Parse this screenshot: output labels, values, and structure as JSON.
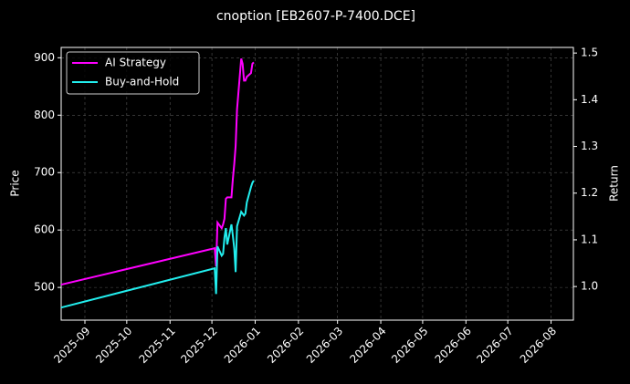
{
  "chart_data": {
    "type": "line",
    "title": "cnoption [EB2607-P-7400.DCE]",
    "ylabel": "Price",
    "y2label": "Return",
    "x": [
      "2025-08-15",
      "2025-12-03",
      "2025-12-04",
      "2025-12-05",
      "2025-12-08",
      "2025-12-09",
      "2025-12-10",
      "2025-12-11",
      "2025-12-12",
      "2025-12-15",
      "2025-12-16",
      "2025-12-17",
      "2025-12-18",
      "2025-12-19",
      "2025-12-22",
      "2025-12-23",
      "2025-12-24",
      "2025-12-25",
      "2025-12-26",
      "2025-12-29",
      "2025-12-30",
      "2025-12-31"
    ],
    "series": [
      {
        "name": "AI Strategy",
        "color": "#ff00ff",
        "axis": "y2",
        "values": [
          1.004,
          1.082,
          1.043,
          1.137,
          1.125,
          1.133,
          1.145,
          1.188,
          1.191,
          1.191,
          1.23,
          1.262,
          1.301,
          1.379,
          1.488,
          1.477,
          1.441,
          1.441,
          1.449,
          1.457,
          1.477,
          1.48
        ]
      },
      {
        "name": "Buy-and-Hold",
        "color": "#22eeee",
        "axis": "y2",
        "values": [
          0.955,
          1.039,
          0.984,
          1.086,
          1.066,
          1.07,
          1.105,
          1.125,
          1.09,
          1.133,
          1.109,
          1.082,
          1.031,
          1.129,
          1.16,
          1.156,
          1.152,
          1.156,
          1.18,
          1.213,
          1.222,
          1.227
        ]
      }
    ],
    "xlim": [
      "2025-08-15",
      "2026-08-17"
    ],
    "xticks": [
      "2025-09",
      "2025-10",
      "2025-11",
      "2025-12",
      "2026-01",
      "2026-02",
      "2026-03",
      "2026-04",
      "2026-05",
      "2026-06",
      "2026-07",
      "2026-08"
    ],
    "ylim": [
      443,
      918
    ],
    "yticks": [
      500,
      600,
      700,
      800,
      900
    ],
    "y2lim": [
      0.928,
      1.512
    ],
    "y2ticks": [
      {
        "value": 1,
        "label": "1.0"
      },
      1.1,
      1.2,
      1.3,
      1.4,
      1.5
    ],
    "grid": true,
    "legend": "upper left"
  }
}
